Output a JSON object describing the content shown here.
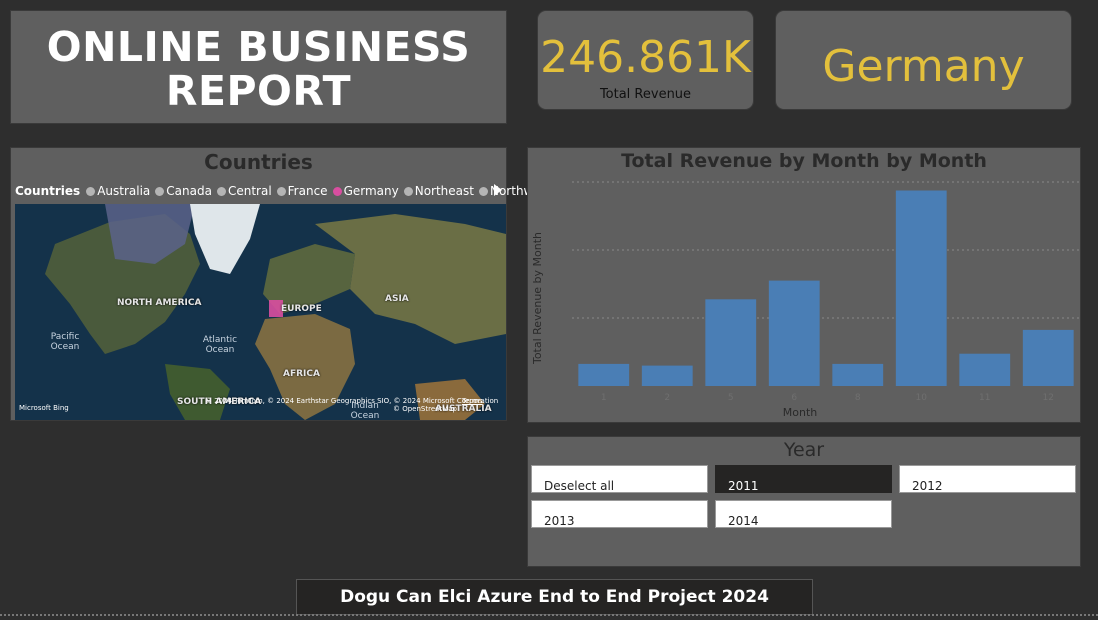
{
  "report": {
    "title_line1": "ONLINE BUSINESS",
    "title_line2": "REPORT"
  },
  "kpi": {
    "value": "246.861K",
    "label": "Total Revenue"
  },
  "selected_country": "Germany",
  "map": {
    "title": "Countries",
    "legend_title": "Countries",
    "legend_items": [
      "Australia",
      "Canada",
      "Central",
      "France",
      "Germany",
      "Northeast",
      "Northwest"
    ],
    "selected_item": "Germany",
    "labels": {
      "north_america": "NORTH AMERICA",
      "europe": "EUROPE",
      "asia": "ASIA",
      "africa": "AFRICA",
      "south_america": "SOUTH AMERICA",
      "australia": "AUSTRALIA",
      "pacific": "Pacific Ocean",
      "atlantic": "Atlantic Ocean",
      "indian": "Indian Ocean"
    },
    "credits": {
      "bing": "Microsoft Bing",
      "copyright": "© 2024 TomTom, © 2024 Earthstar Geographics SIO, © 2024 Microsoft Corporation",
      "terms": "Terms",
      "osm": "© OpenStreetMap"
    },
    "colors": {
      "selected": "#d94ea0",
      "unselected": "#b5b5b5"
    }
  },
  "chart_data": {
    "type": "bar",
    "title": "Total Revenue by Month by Month",
    "xlabel": "Month",
    "ylabel": "Total Revenue by Month",
    "categories": [
      "1",
      "2",
      "5",
      "6",
      "8",
      "10",
      "11",
      "12"
    ],
    "values": [
      13,
      12,
      51,
      62,
      13,
      115,
      19,
      33
    ],
    "ylim": [
      0,
      120
    ],
    "color": "#4a7eb5",
    "grid": true
  },
  "year": {
    "title": "Year",
    "buttons": [
      "Deselect all",
      "2011",
      "2012",
      "2013",
      "2014"
    ],
    "selected": "2011"
  },
  "footer": "Dogu Can Elci Azure End to End Project 2024"
}
